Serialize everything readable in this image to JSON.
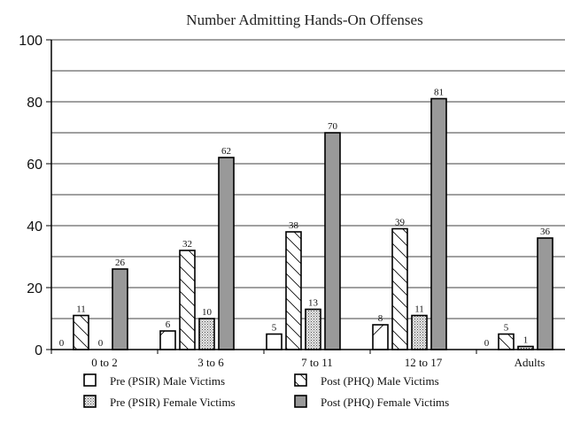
{
  "chart_data": {
    "type": "bar",
    "title": "Number Admitting Hands-On Offenses",
    "xlabel": "",
    "ylabel": "",
    "ylim": [
      0,
      100
    ],
    "yticks": [
      0,
      20,
      40,
      60,
      80,
      100
    ],
    "grid": true,
    "legend_position": "bottom",
    "categories": [
      "0 to 2",
      "3 to 6",
      "7 to 11",
      "12 to 17",
      "Adults"
    ],
    "series": [
      {
        "name": "Pre (PSIR) Male Victims",
        "values": [
          0,
          6,
          5,
          8,
          0
        ],
        "pattern": "diag-forward"
      },
      {
        "name": "Post (PHQ) Male Victims",
        "values": [
          11,
          32,
          38,
          39,
          5
        ],
        "pattern": "diag-back"
      },
      {
        "name": "Pre (PSIR) Female Victims",
        "values": [
          0,
          10,
          13,
          11,
          1
        ],
        "pattern": "dots"
      },
      {
        "name": "Post (PHQ) Female Victims",
        "values": [
          26,
          62,
          70,
          81,
          36
        ],
        "pattern": "solid",
        "color": "#999999"
      }
    ]
  }
}
